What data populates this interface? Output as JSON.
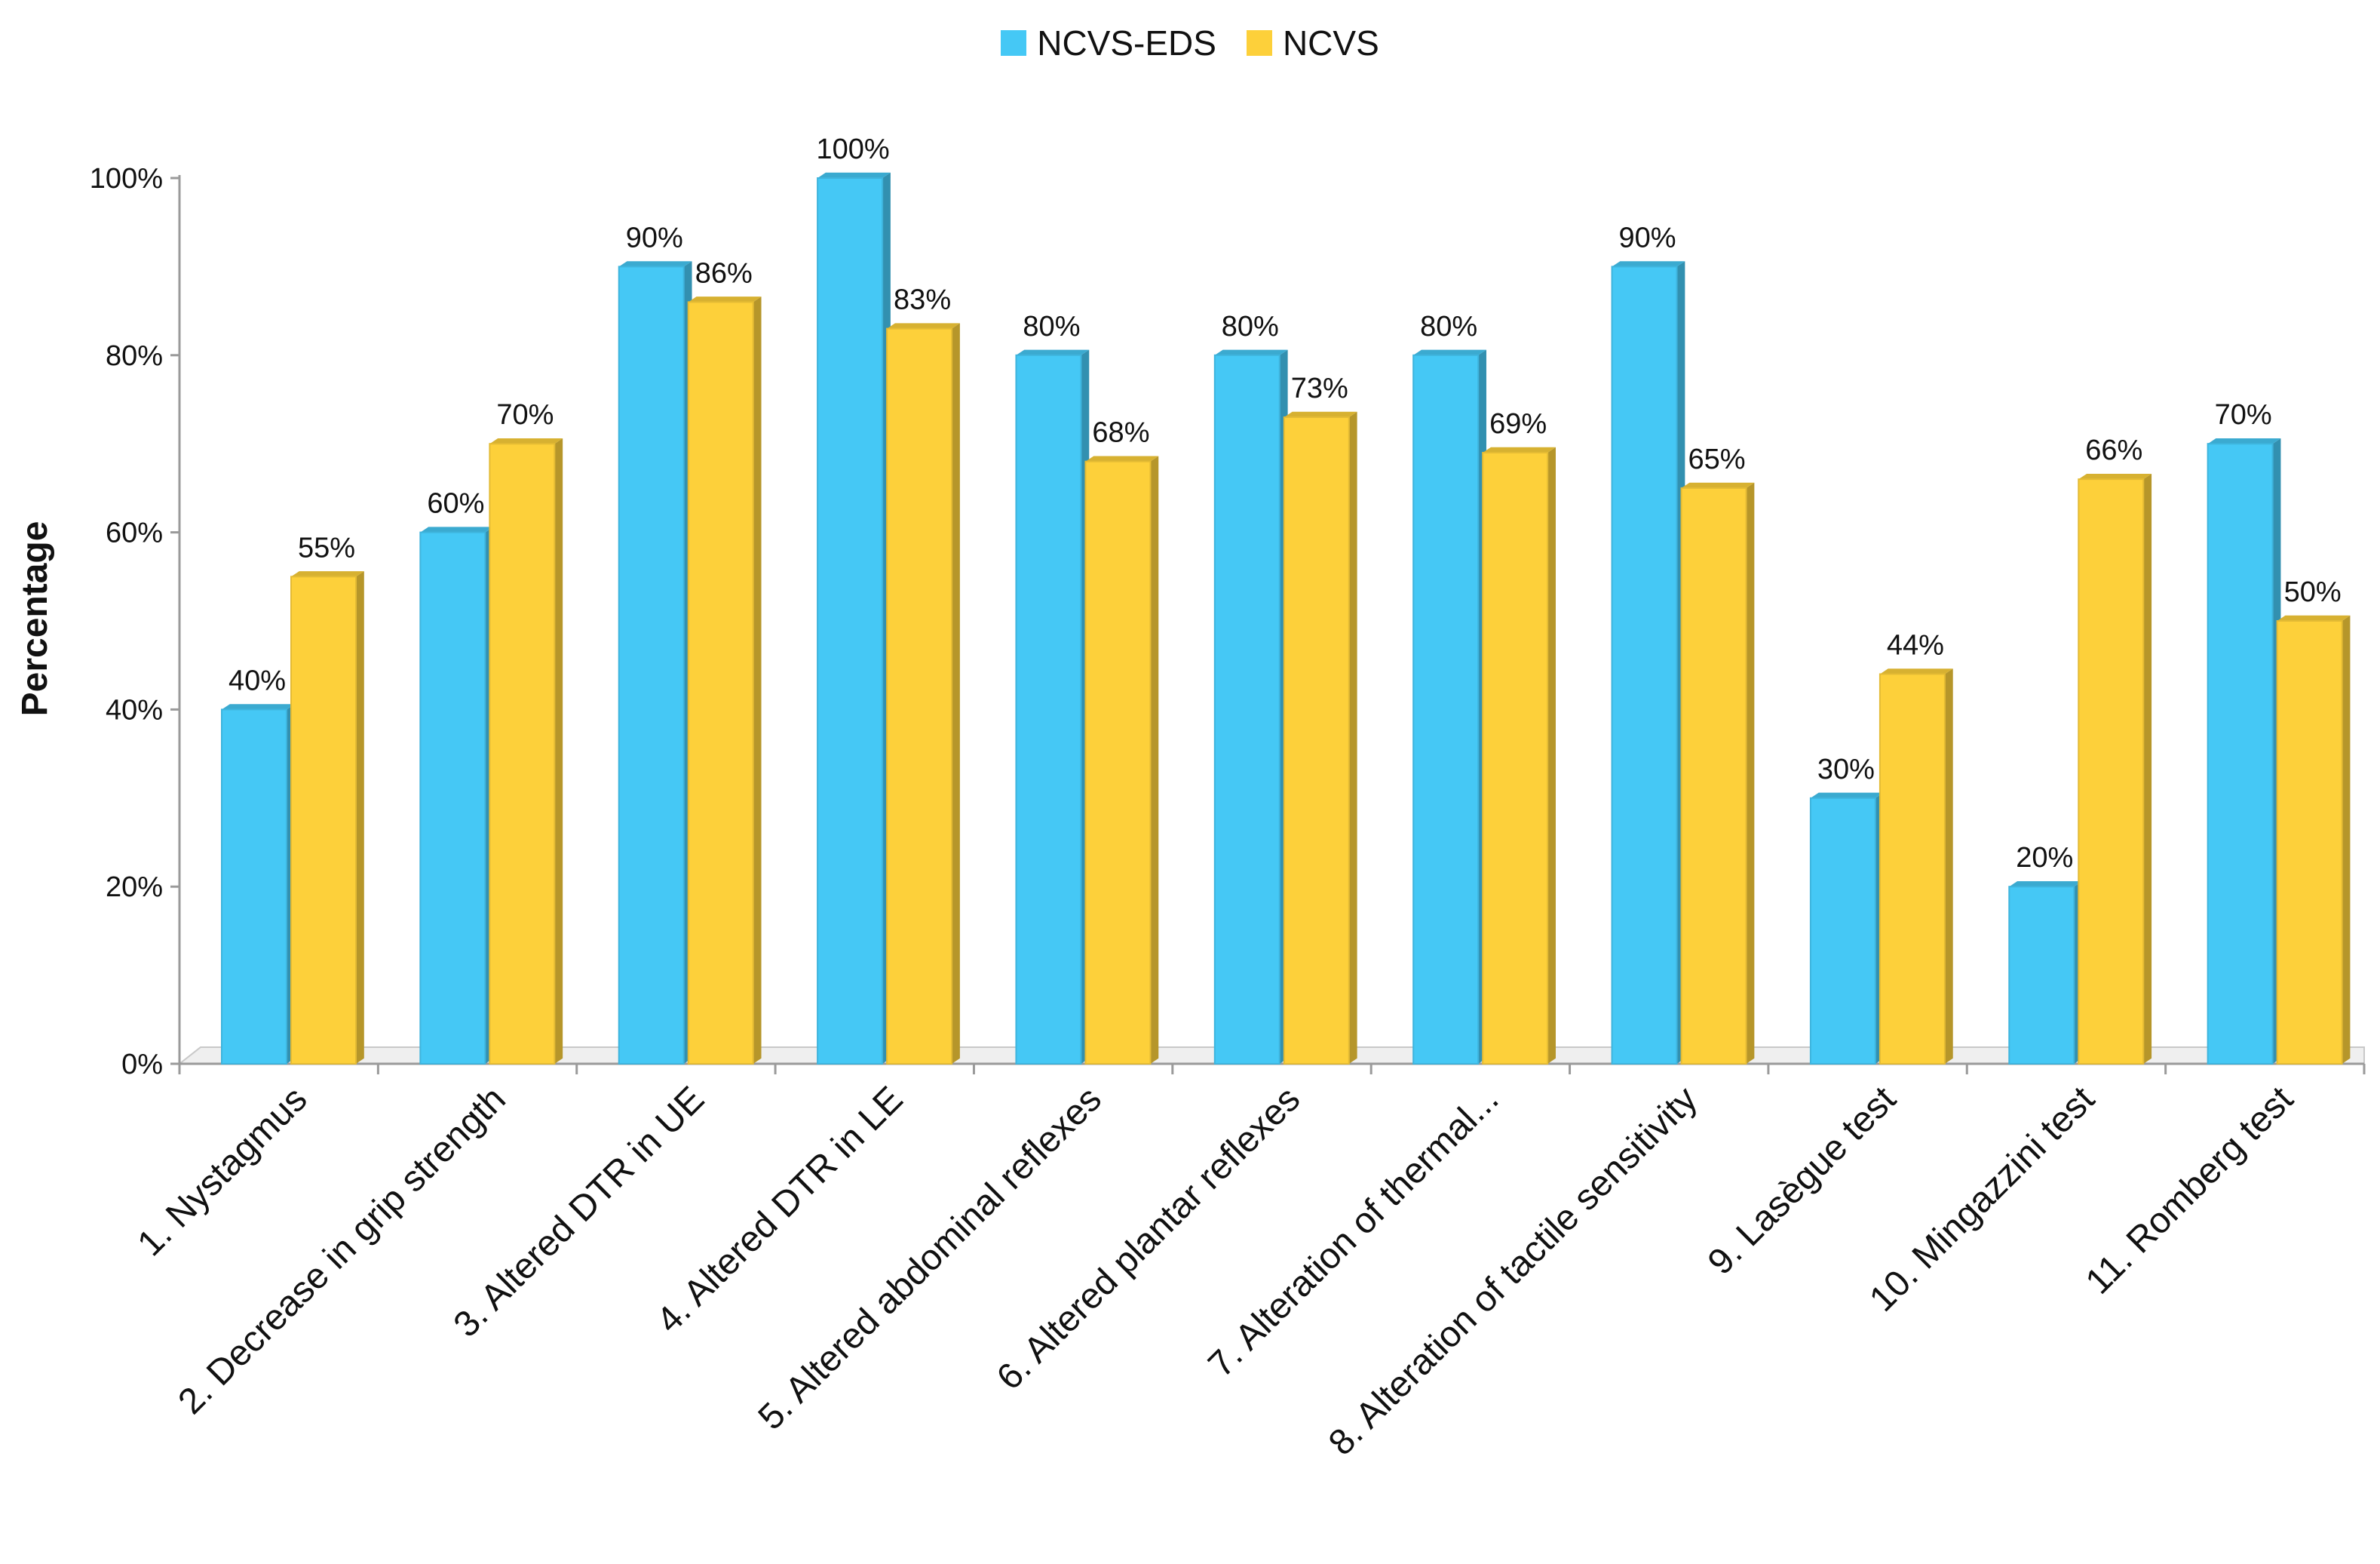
{
  "chart_data": {
    "type": "bar",
    "title": "",
    "xlabel": "",
    "ylabel": "Percentage",
    "ylim": [
      0,
      100
    ],
    "yticks": [
      "0%",
      "20%",
      "40%",
      "60%",
      "80%",
      "100%"
    ],
    "categories": [
      "1. Nystagmus",
      "2. Decrease in grip strength",
      "3. Altered DTR in UE",
      "4. Altered DTR in LE",
      "5. Altered abdominal reflexes",
      "6. Altered plantar reflexes",
      "7. Alteration of thermal...",
      "8. Alteration of tactile sensitivity",
      "9. Lasègue test",
      "10. Mingazzini test",
      "11. Romberg test"
    ],
    "series": [
      {
        "name": "NCVS-EDS",
        "color": "#45c8f5",
        "values": [
          40,
          60,
          90,
          100,
          80,
          80,
          80,
          90,
          30,
          20,
          70
        ],
        "labels": [
          "40%",
          "60%",
          "90%",
          "100%",
          "80%",
          "80%",
          "80%",
          "90%",
          "30%",
          "20%",
          "70%"
        ]
      },
      {
        "name": "NCVS",
        "color": "#fdd03a",
        "values": [
          55,
          70,
          86,
          83,
          68,
          73,
          69,
          65,
          44,
          66,
          50
        ],
        "labels": [
          "55%",
          "70%",
          "86%",
          "83%",
          "68%",
          "73%",
          "69%",
          "65%",
          "44%",
          "66%",
          "50%"
        ]
      }
    ],
    "legend": "top-center",
    "grid": false
  }
}
